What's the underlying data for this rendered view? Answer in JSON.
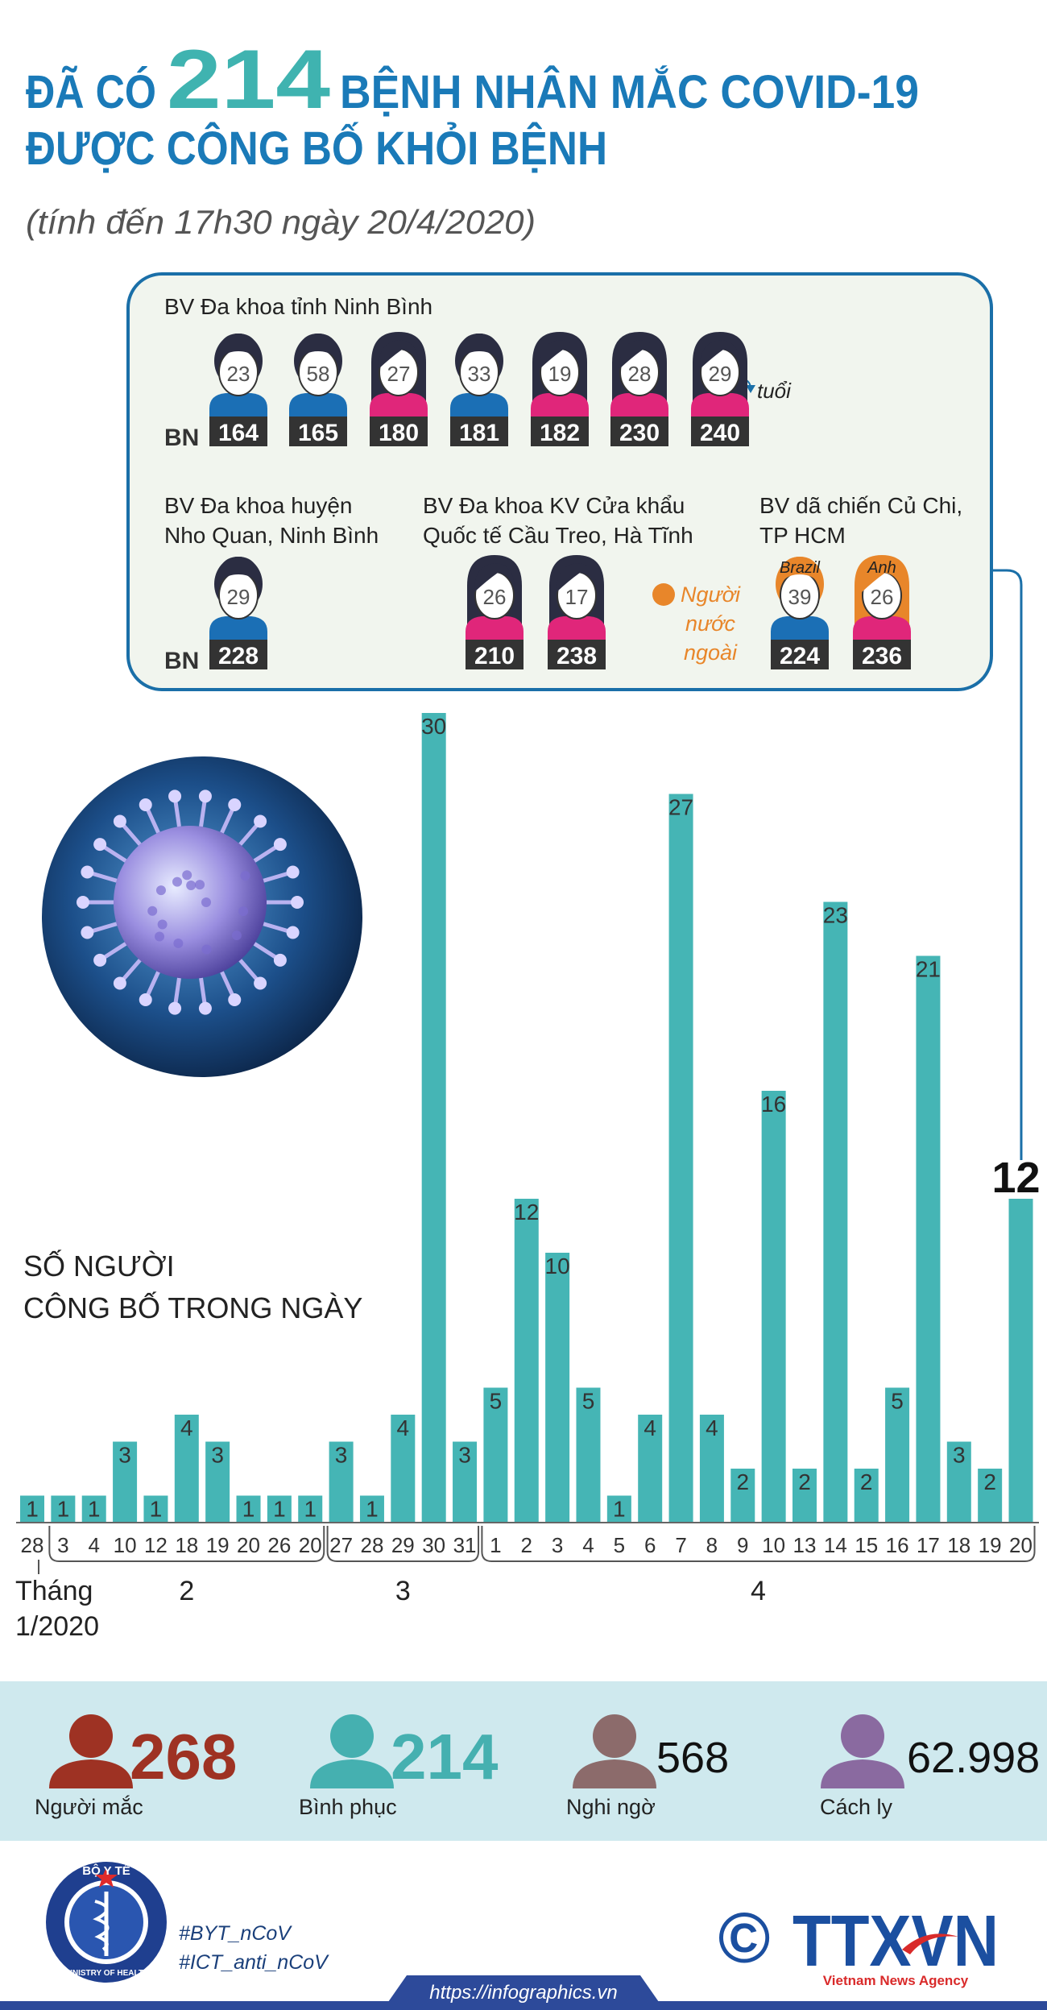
{
  "header": {
    "title_prefix": "ĐÃ CÓ",
    "title_number": "214",
    "title_suffix": "BỆNH NHÂN MẮC COVID-19",
    "title_line2": "ĐƯỢC CÔNG BỐ KHỎI BỆNH",
    "subtitle": "(tính đến 17h30 ngày 20/4/2020)"
  },
  "patients": {
    "id_prefix": "BN",
    "age_unit": "tuổi",
    "foreign_legend": [
      "Người",
      "nước",
      "ngoài"
    ],
    "foreign_color": "#e8862a",
    "groups": [
      {
        "hospital": [
          "BV Đa khoa tỉnh Ninh Bình"
        ],
        "patients": [
          {
            "age": 23,
            "id": 164,
            "gender": "male"
          },
          {
            "age": 58,
            "id": 165,
            "gender": "male"
          },
          {
            "age": 27,
            "id": 180,
            "gender": "female"
          },
          {
            "age": 33,
            "id": 181,
            "gender": "male"
          },
          {
            "age": 19,
            "id": 182,
            "gender": "female"
          },
          {
            "age": 28,
            "id": 230,
            "gender": "female"
          },
          {
            "age": 29,
            "id": 240,
            "gender": "female"
          }
        ]
      },
      {
        "hospital": [
          "BV Đa khoa huyện",
          "Nho Quan, Ninh Bình"
        ],
        "patients": [
          {
            "age": 29,
            "id": 228,
            "gender": "male"
          }
        ]
      },
      {
        "hospital": [
          "BV Đa khoa KV Cửa khẩu",
          "Quốc tế Cầu Treo, Hà Tĩnh"
        ],
        "patients": [
          {
            "age": 26,
            "id": 210,
            "gender": "female"
          },
          {
            "age": 17,
            "id": 238,
            "gender": "female"
          }
        ]
      },
      {
        "hospital": [
          "BV dã chiến Củ Chi,",
          "TP HCM"
        ],
        "patients": [
          {
            "age": 39,
            "id": 224,
            "gender": "male",
            "nationality": "Brazil"
          },
          {
            "age": 26,
            "id": 236,
            "gender": "female",
            "nationality": "Anh"
          }
        ]
      }
    ]
  },
  "chart_data": {
    "type": "bar",
    "title": [
      "SỐ NGƯỜI",
      "CÔNG BỐ TRONG NGÀY"
    ],
    "categories": [
      "28",
      "3",
      "4",
      "10",
      "12",
      "18",
      "19",
      "20",
      "26",
      "20",
      "27",
      "28",
      "29",
      "30",
      "31",
      "1",
      "2",
      "3",
      "4",
      "5",
      "6",
      "7",
      "8",
      "9",
      "10",
      "13",
      "14",
      "15",
      "16",
      "17",
      "18",
      "19",
      "20"
    ],
    "values": [
      1,
      1,
      1,
      3,
      1,
      4,
      3,
      1,
      1,
      1,
      3,
      1,
      4,
      30,
      3,
      5,
      12,
      10,
      5,
      1,
      4,
      27,
      4,
      2,
      16,
      2,
      23,
      2,
      5,
      21,
      3,
      2,
      12
    ],
    "months": [
      [
        "Tháng",
        "1/2020"
      ],
      [
        "2"
      ],
      [
        "3"
      ],
      [
        "4"
      ]
    ],
    "color": "#45b5b5",
    "ylim": [
      0,
      30
    ]
  },
  "stats": [
    {
      "value": "268",
      "label": "Người mắc",
      "icon_color": "#9e3223",
      "number_color": "#9e3223",
      "bold": true
    },
    {
      "value": "214",
      "label": "Bình phục",
      "icon_color": "#45b0b0",
      "number_color": "#45b0b0",
      "bold": true
    },
    {
      "value": "568",
      "label": "Nghi ngờ",
      "icon_color": "#8c6b6b",
      "number_color": "#111111",
      "bold": false
    },
    {
      "value": "62.998",
      "label": "Cách ly",
      "icon_color": "#8a6aa0",
      "number_color": "#111111",
      "bold": false
    }
  ],
  "footer": {
    "ministry": "BỘ Y TẾ",
    "ministry_en": "MINISTRY OF HEALTH",
    "hashtags": [
      "#BYT_nCoV",
      "#ICT_anti_nCoV"
    ],
    "url": "https://infographics.vn",
    "copyright": "©",
    "agency": "TTXVN",
    "agency_en": "Vietnam News Agency"
  }
}
